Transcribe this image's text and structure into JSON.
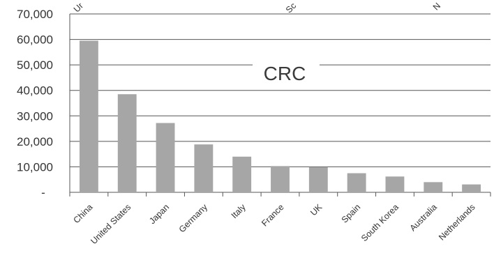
{
  "chart_data": {
    "type": "bar",
    "title": "CRC",
    "xlabel": "",
    "ylabel": "",
    "categories": [
      "China",
      "United States",
      "Japan",
      "Germany",
      "Italy",
      "France",
      "UK",
      "Spain",
      "South Korea",
      "Australia",
      "Netherlands"
    ],
    "values": [
      59500,
      38500,
      27200,
      18800,
      14000,
      10300,
      9900,
      7500,
      6200,
      4000,
      3100
    ],
    "ylim": [
      0,
      70000
    ],
    "yticks": [
      0,
      10000,
      20000,
      30000,
      40000,
      50000,
      60000,
      70000
    ],
    "ytick_labels": [
      "-",
      "10,000",
      "20,000",
      "30,000",
      "40,000",
      "50,000",
      "60,000",
      "70,000"
    ],
    "grid": true,
    "legend": "none",
    "bar_color": "#a6a6a6",
    "grid_color": "#555555",
    "top_fragments": [
      "Ur",
      "Sc",
      "N"
    ]
  }
}
